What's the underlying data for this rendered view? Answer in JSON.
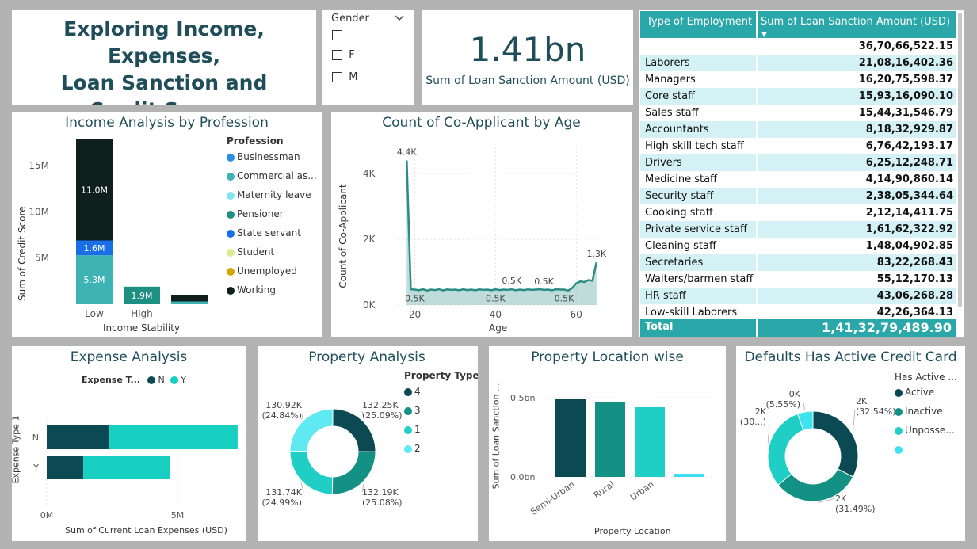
{
  "header": {
    "title_line1": "Exploring Income, Expenses,",
    "title_line2": "Loan Sanction and",
    "title_line3": "Credit Scores"
  },
  "slicer": {
    "title": "Gender",
    "options": [
      "",
      "F",
      "M"
    ],
    "chevron_icon": "chevron-down-icon"
  },
  "kpi": {
    "value": "1.41bn",
    "label": "Sum of Loan Sanction Amount (USD)"
  },
  "employment_table": {
    "header_col1": "Type of Employment",
    "header_col2": "Sum of Loan Sanction Amount (USD)",
    "rows": [
      {
        "type": "",
        "amount": "36,70,66,522.15"
      },
      {
        "type": "Laborers",
        "amount": "21,08,16,402.36"
      },
      {
        "type": "Managers",
        "amount": "16,20,75,598.37"
      },
      {
        "type": "Core staff",
        "amount": "15,93,16,090.10"
      },
      {
        "type": "Sales staff",
        "amount": "15,44,31,546.79"
      },
      {
        "type": "Accountants",
        "amount": "8,18,32,929.87"
      },
      {
        "type": "High skill tech staff",
        "amount": "6,76,42,193.17"
      },
      {
        "type": "Drivers",
        "amount": "6,25,12,248.71"
      },
      {
        "type": "Medicine staff",
        "amount": "4,14,90,860.14"
      },
      {
        "type": "Security staff",
        "amount": "2,38,05,344.64"
      },
      {
        "type": "Cooking staff",
        "amount": "2,12,14,411.75"
      },
      {
        "type": "Private service staff",
        "amount": "1,61,62,322.92"
      },
      {
        "type": "Cleaning staff",
        "amount": "1,48,04,902.85"
      },
      {
        "type": "Secretaries",
        "amount": "83,22,268.43"
      },
      {
        "type": "Waiters/barmen staff",
        "amount": "55,12,170.13"
      },
      {
        "type": "HR staff",
        "amount": "43,06,268.28"
      },
      {
        "type": "Low-skill Laborers",
        "amount": "42,26,364.13"
      }
    ],
    "total_label": "Total",
    "total_amount": "1,41,32,79,489.90",
    "colors": {
      "header": "#2aa7a8",
      "alt_row": "#d4f1f5",
      "total": "#2aa7a8"
    }
  },
  "chart_data": [
    {
      "id": "income",
      "type": "bar",
      "stacked": true,
      "title": "Income Analysis by Profession",
      "xlabel": "Income Stability",
      "ylabel": "Sum of Credit Score",
      "categories": [
        "Low",
        "High",
        ""
      ],
      "ylim": [
        0,
        18000000
      ],
      "y_ticks": [
        {
          "v": 5000000,
          "label": "5M"
        },
        {
          "v": 10000000,
          "label": "10M"
        },
        {
          "v": 15000000,
          "label": "15M"
        }
      ],
      "legend_title": "Profession",
      "legend": [
        {
          "name": "Businessman",
          "color": "#2b8fe8"
        },
        {
          "name": "Commercial as...",
          "color": "#3fb3b3"
        },
        {
          "name": "Maternity leave",
          "color": "#7fe7ef"
        },
        {
          "name": "Pensioner",
          "color": "#1e8f83"
        },
        {
          "name": "State servant",
          "color": "#1a6ee8"
        },
        {
          "name": "Student",
          "color": "#dfe98f"
        },
        {
          "name": "Unemployed",
          "color": "#d4a800"
        },
        {
          "name": "Working",
          "color": "#0e1f1c"
        }
      ],
      "series": [
        {
          "name": "Commercial as...",
          "color": "#3fb3b3",
          "values": [
            5300000,
            0,
            300000
          ],
          "labels": [
            "5.3M",
            "",
            ""
          ]
        },
        {
          "name": "Pensioner",
          "color": "#1e8f83",
          "values": [
            0,
            1900000,
            0
          ],
          "labels": [
            "",
            "1.9M",
            ""
          ]
        },
        {
          "name": "State servant",
          "color": "#1a6ee8",
          "values": [
            1600000,
            0,
            0
          ],
          "labels": [
            "1.6M",
            "",
            ""
          ]
        },
        {
          "name": "Working",
          "color": "#0e1f1c",
          "values": [
            11000000,
            0,
            700000
          ],
          "labels": [
            "11.0M",
            "",
            ""
          ]
        }
      ],
      "grid": false
    },
    {
      "id": "coapp",
      "type": "area",
      "title": "Count of Co-Applicant by Age",
      "xlabel": "Age",
      "ylabel": "Count of Co-Applicant",
      "xlim": [
        15,
        67
      ],
      "ylim": [
        0,
        4800
      ],
      "x_ticks": [
        20,
        40,
        60
      ],
      "y_ticks": [
        {
          "v": 0,
          "label": "0K"
        },
        {
          "v": 2000,
          "label": "2K"
        },
        {
          "v": 4000,
          "label": "4K"
        }
      ],
      "x": [
        18,
        19,
        20,
        21,
        22,
        23,
        24,
        25,
        26,
        27,
        28,
        29,
        30,
        31,
        32,
        33,
        34,
        35,
        36,
        37,
        38,
        39,
        40,
        41,
        42,
        43,
        44,
        45,
        46,
        47,
        48,
        49,
        50,
        51,
        52,
        53,
        54,
        55,
        56,
        57,
        58,
        59,
        60,
        61,
        62,
        63,
        64,
        65
      ],
      "y": [
        4400,
        480,
        470,
        450,
        480,
        440,
        470,
        455,
        480,
        445,
        475,
        460,
        470,
        450,
        480,
        455,
        470,
        450,
        475,
        460,
        470,
        450,
        480,
        455,
        470,
        460,
        480,
        450,
        470,
        455,
        475,
        460,
        470,
        480,
        460,
        470,
        450,
        480,
        470,
        470,
        440,
        520,
        660,
        720,
        700,
        760,
        740,
        1300
      ],
      "point_labels": [
        {
          "x": 18,
          "y": 4400,
          "text": "4.4K",
          "pos": "above"
        },
        {
          "x": 20,
          "y": 470,
          "text": "0.5K",
          "pos": "below"
        },
        {
          "x": 40,
          "y": 470,
          "text": "0.5K",
          "pos": "below"
        },
        {
          "x": 44,
          "y": 480,
          "text": "0.5K",
          "pos": "above"
        },
        {
          "x": 52,
          "y": 460,
          "text": "0.5K",
          "pos": "above"
        },
        {
          "x": 57,
          "y": 470,
          "text": "0.5K",
          "pos": "below"
        },
        {
          "x": 65,
          "y": 1300,
          "text": "1.3K",
          "pos": "above"
        }
      ],
      "color": "#2a8c84",
      "grid": true
    },
    {
      "id": "expense",
      "type": "bar",
      "orientation": "horizontal",
      "stacked": true,
      "title": "Expense Analysis",
      "xlabel": "Sum of Current Loan Expenses (USD)",
      "ylabel": "Expense Type 1",
      "legend_title": "Expense T...",
      "categories": [
        "N",
        "Y"
      ],
      "xlim": [
        0,
        7000000
      ],
      "x_ticks": [
        {
          "v": 0,
          "label": "0M"
        },
        {
          "v": 5000000,
          "label": "5M"
        }
      ],
      "series": [
        {
          "name": "N",
          "color": "#0b4a52",
          "values": [
            2400000,
            1400000
          ]
        },
        {
          "name": "Y",
          "color": "#17cfc0",
          "values": [
            4900000,
            3300000
          ]
        }
      ]
    },
    {
      "id": "property",
      "type": "pie",
      "donut": true,
      "title": "Property Analysis",
      "legend_title": "Property Type",
      "slices": [
        {
          "name": "4",
          "value": 132.25,
          "label": "132.25K",
          "pct": "(25.09%)",
          "color": "#0b4a52"
        },
        {
          "name": "3",
          "value": 132.19,
          "label": "132.19K",
          "pct": "(25.08%)",
          "color": "#139184"
        },
        {
          "name": "1",
          "value": 131.74,
          "label": "131.74K",
          "pct": "(24.99%)",
          "color": "#1fcfc6"
        },
        {
          "name": "2",
          "value": 130.92,
          "label": "130.92K",
          "pct": "(24.84%)",
          "color": "#5fe9f2"
        }
      ]
    },
    {
      "id": "location",
      "type": "bar",
      "title": "Property Location wise",
      "xlabel": "Property Location",
      "ylabel": "Sum of Loan Sanction ...",
      "categories": [
        "Semi-Urban",
        "Rural",
        "Urban",
        ""
      ],
      "values": [
        0.49,
        0.47,
        0.44,
        0.02
      ],
      "colors": [
        "#0b4a52",
        "#139184",
        "#1fcfc6",
        "#3fdff2"
      ],
      "ylim": [
        0,
        0.6
      ],
      "y_ticks": [
        {
          "v": 0,
          "label": "0.0bn"
        },
        {
          "v": 0.5,
          "label": "0.5bn"
        }
      ],
      "grid": true
    },
    {
      "id": "defaults",
      "type": "pie",
      "donut": true,
      "title": "Defaults Has Active Credit Card",
      "legend_title": "Has Active ...",
      "slices": [
        {
          "name": "Active",
          "value": 32.54,
          "label": "2K",
          "pct": "(32.54%)",
          "color": "#0b4a52"
        },
        {
          "name": "Inactive",
          "value": 31.49,
          "label": "2K",
          "pct": "(31.49%)",
          "color": "#139184"
        },
        {
          "name": "Unposse...",
          "value": 30.42,
          "label": "2K",
          "pct": "(30...)",
          "color": "#1fcfc6"
        },
        {
          "name": "",
          "value": 5.55,
          "label": "0K",
          "pct": "(5.55%)",
          "color": "#3fe3f0"
        }
      ]
    }
  ]
}
